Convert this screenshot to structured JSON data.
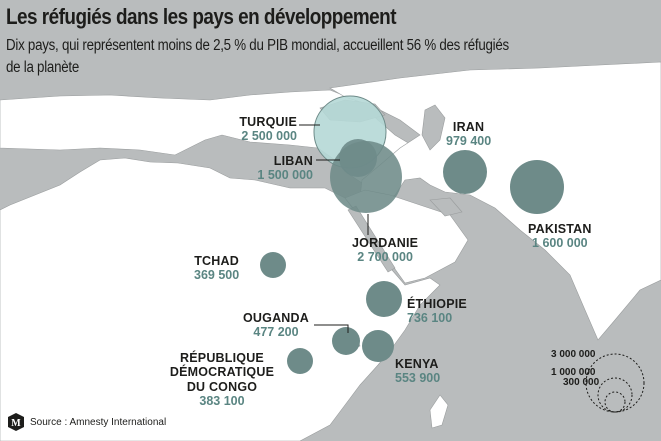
{
  "header": {
    "title": "Les réfugiés dans les pays en développement",
    "subtitle": "Dix pays, qui représentent moins de 2,5 % du PIB mondial, accueillent 56 % des réfugiés de la planète"
  },
  "colors": {
    "background": "#b9bcbd",
    "land": "#ffffff",
    "bubble": "#6e8b89",
    "bubble_light": "#b5d8d6",
    "value_text": "#5a8582"
  },
  "countries": [
    {
      "name": "TURQUIE",
      "refugees": "2 500 000",
      "value": 2500000
    },
    {
      "name": "LIBAN",
      "refugees": "1 500 000",
      "value": 1500000
    },
    {
      "name": "JORDANIE",
      "refugees": "2 700 000",
      "value": 2700000
    },
    {
      "name": "IRAN",
      "refugees": "979 400",
      "value": 979400
    },
    {
      "name": "PAKISTAN",
      "refugees": "1 600 000",
      "value": 1600000
    },
    {
      "name": "TCHAD",
      "refugees": "369 500",
      "value": 369500
    },
    {
      "name": "ÉTHIOPIE",
      "refugees": "736 100",
      "value": 736100
    },
    {
      "name": "OUGANDA",
      "refugees": "477 200",
      "value": 477200
    },
    {
      "name": "KENYA",
      "refugees": "553 900",
      "value": 553900
    },
    {
      "name": "RÉPUBLIQUE DÉMOCRATIQUE DU CONGO",
      "name_lines": [
        "RÉPUBLIQUE",
        "DÉMOCRATIQUE",
        "DU CONGO"
      ],
      "refugees": "383 100",
      "value": 383100
    }
  ],
  "legend": {
    "labels": [
      "3 000 000",
      "1 000 000",
      "300 000"
    ],
    "values": [
      3000000,
      1000000,
      300000
    ]
  },
  "source": "Source : Amnesty International",
  "logo": "le-monde-logo"
}
